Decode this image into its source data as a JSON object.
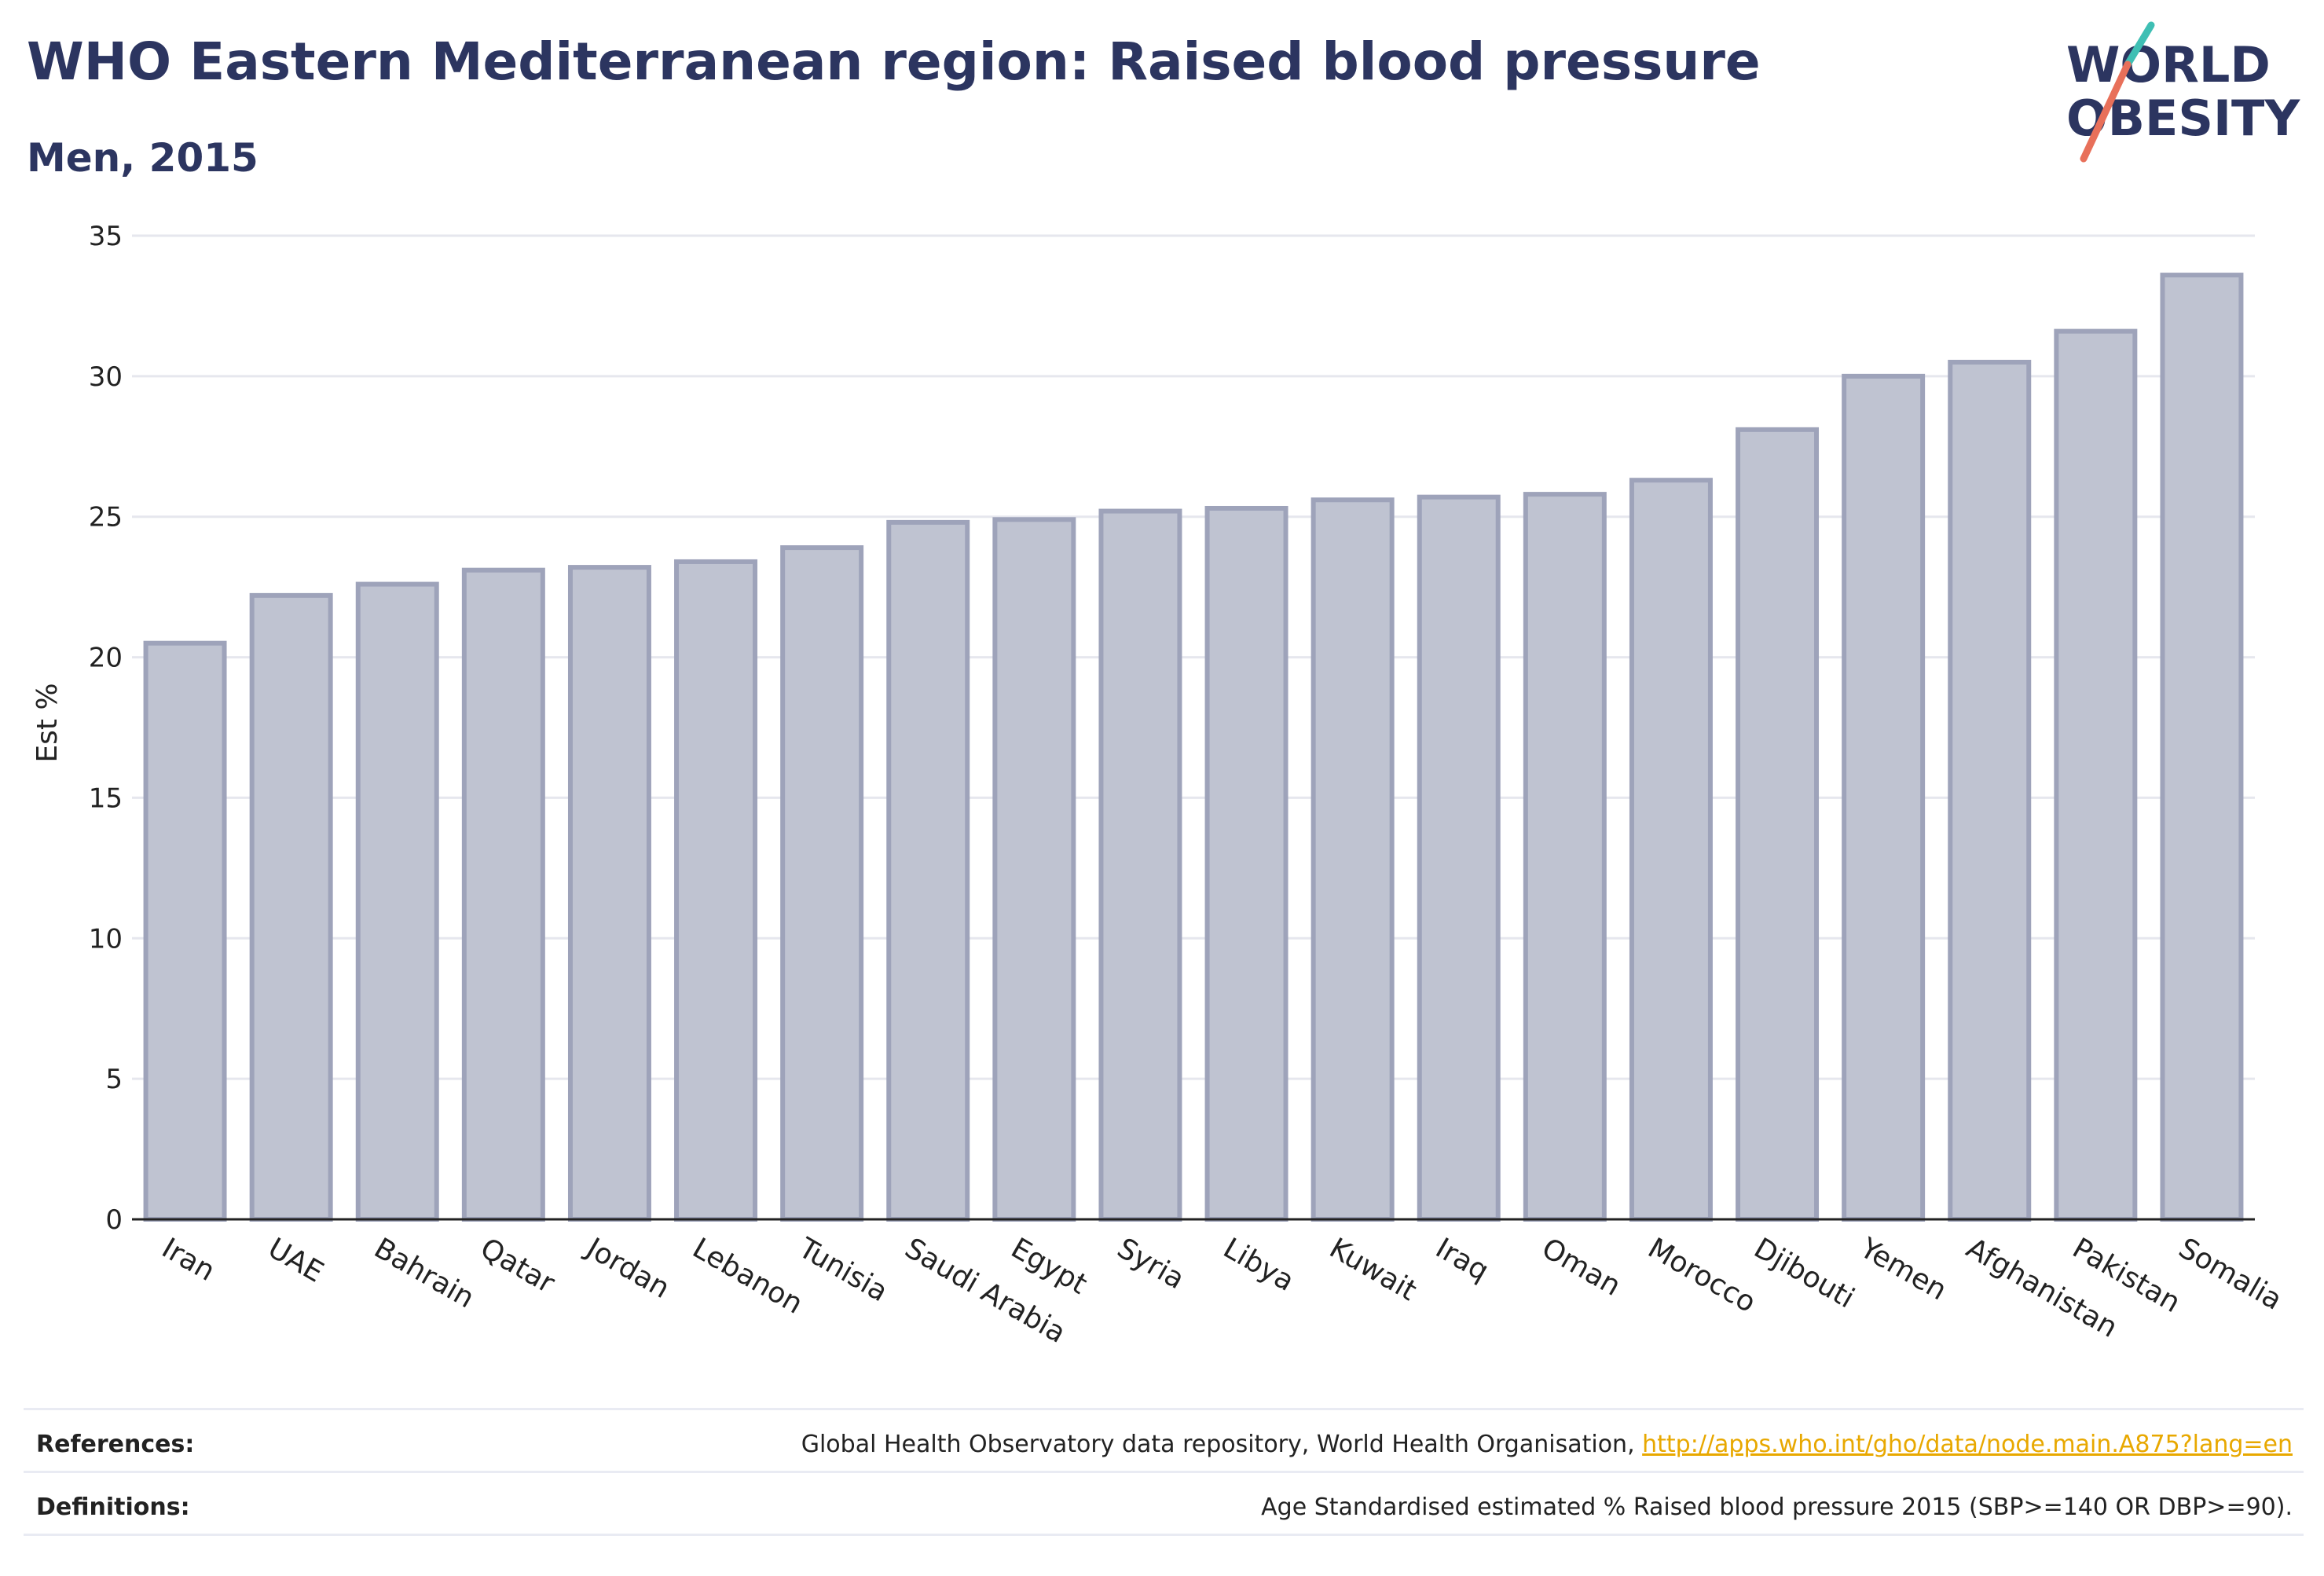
{
  "header": {
    "title": "WHO Eastern Mediterranean region: Raised blood pressure",
    "subtitle": "Men, 2015"
  },
  "logo": {
    "line1": "WORLD",
    "line2": "OBESITY",
    "colors": {
      "text": "#2c3560",
      "slash_top": "#3fbfb4",
      "slash_bottom": "#e8705a"
    }
  },
  "colors": {
    "bar_fill": "#bfc3d1",
    "bar_stroke": "#9ea3ba",
    "grid": "#e6e7ee",
    "axis": "#222222",
    "text": "#2c3560",
    "link": "#e8a800"
  },
  "chart_data": {
    "type": "bar",
    "ylabel": "Est %",
    "ylim": [
      0,
      35
    ],
    "yticks": [
      0,
      5,
      10,
      15,
      20,
      25,
      30,
      35
    ],
    "grid": true,
    "categories": [
      "Iran",
      "UAE",
      "Bahrain",
      "Qatar",
      "Jordan",
      "Lebanon",
      "Tunisia",
      "Saudi Arabia",
      "Egypt",
      "Syria",
      "Libya",
      "Kuwait",
      "Iraq",
      "Oman",
      "Morocco",
      "Djibouti",
      "Yemen",
      "Afghanistan",
      "Pakistan",
      "Somalia"
    ],
    "values": [
      20.5,
      22.2,
      22.6,
      23.1,
      23.2,
      23.4,
      23.9,
      24.8,
      24.9,
      25.2,
      25.3,
      25.6,
      25.7,
      25.8,
      26.3,
      28.1,
      30.0,
      30.5,
      31.6,
      33.6
    ]
  },
  "footer": {
    "references_label": "References:",
    "references_text": "Global Health Observatory data repository, World Health Organisation, ",
    "references_link": "http://apps.who.int/gho/data/node.main.A875?lang=en",
    "definitions_label": "Definitions:",
    "definitions_text": "Age Standardised estimated % Raised blood pressure 2015 (SBP>=140 OR DBP>=90)."
  }
}
